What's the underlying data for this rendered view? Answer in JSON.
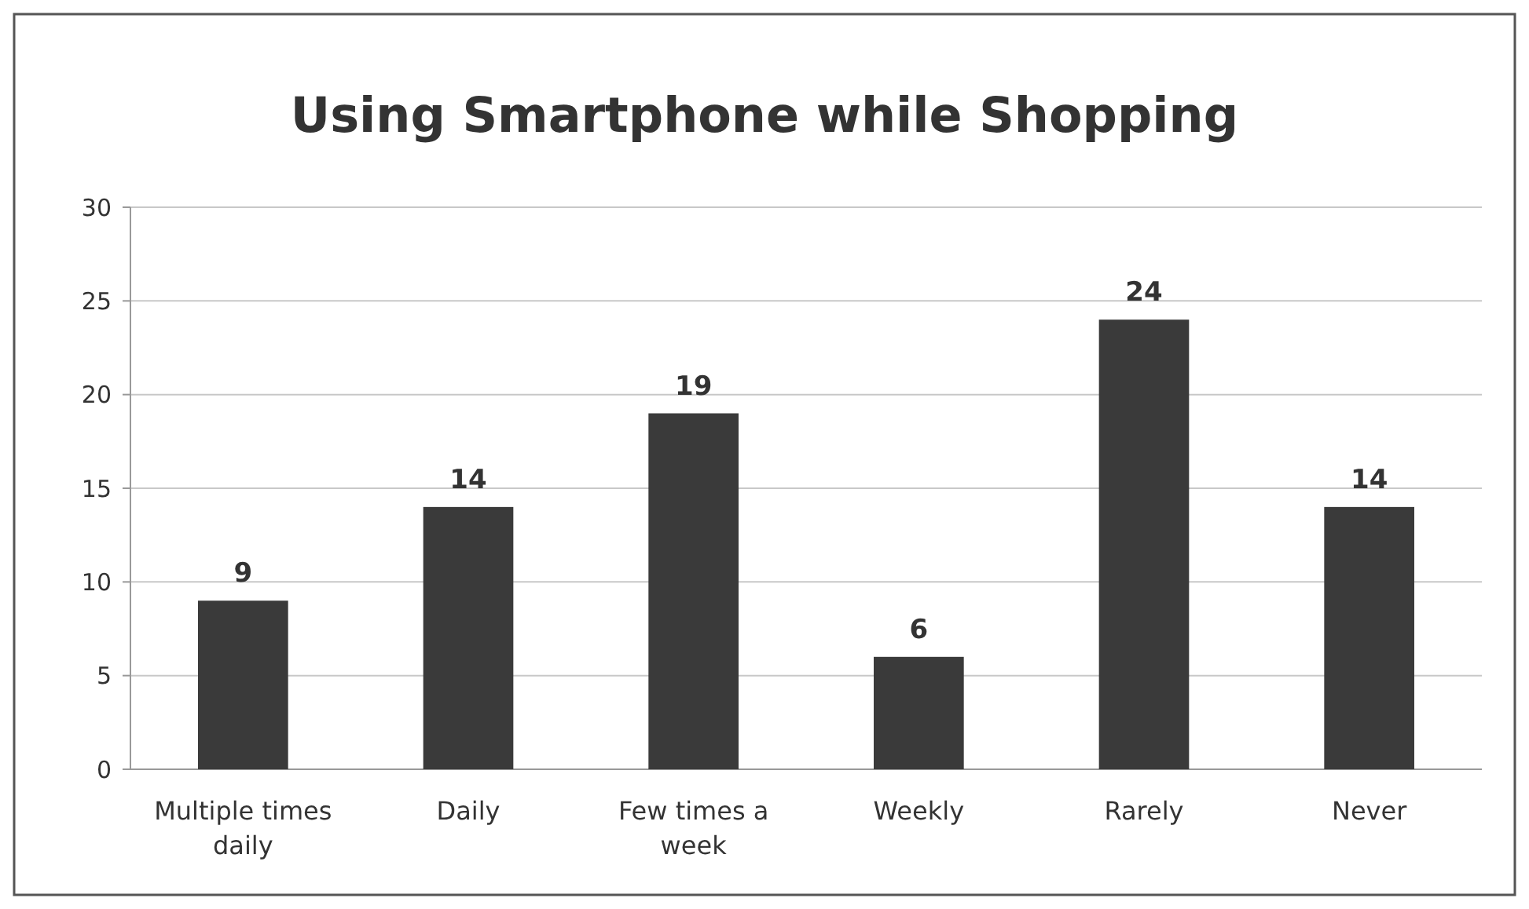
{
  "chart_data": {
    "type": "bar",
    "title": "Using Smartphone while Shopping",
    "categories": [
      "Multiple times daily",
      "Daily",
      "Few times a week",
      "Weekly",
      "Rarely",
      "Never"
    ],
    "values": [
      9,
      14,
      19,
      6,
      24,
      14
    ],
    "color": "#3a3a3a",
    "ylim": [
      0,
      30
    ],
    "yticks": [
      0,
      5,
      10,
      15,
      20,
      25,
      30
    ],
    "grid": "y",
    "data_labels": true
  }
}
